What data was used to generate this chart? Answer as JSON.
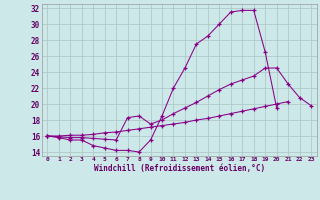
{
  "xlabel": "Windchill (Refroidissement éolien,°C)",
  "background_color": "#cce8e8",
  "grid_color": "#b0c8c8",
  "line_color": "#880088",
  "xlim": [
    -0.5,
    23.5
  ],
  "ylim": [
    13.5,
    32.5
  ],
  "xticks": [
    0,
    1,
    2,
    3,
    4,
    5,
    6,
    7,
    8,
    9,
    10,
    11,
    12,
    13,
    14,
    15,
    16,
    17,
    18,
    19,
    20,
    21,
    22,
    23
  ],
  "yticks": [
    14,
    16,
    18,
    20,
    22,
    24,
    26,
    28,
    30,
    32
  ],
  "curve1_y": [
    16.0,
    15.8,
    15.5,
    15.5,
    14.8,
    14.5,
    14.2,
    14.2,
    14.0,
    15.5,
    18.5,
    22.0,
    24.5,
    27.5,
    28.5,
    30.0,
    31.5,
    31.7,
    31.7,
    26.5,
    19.5,
    null,
    null,
    null
  ],
  "curve2_y": [
    16.0,
    15.9,
    15.8,
    15.8,
    15.7,
    15.6,
    15.5,
    18.3,
    18.5,
    17.5,
    18.0,
    18.8,
    19.5,
    20.2,
    21.0,
    21.8,
    22.5,
    23.0,
    23.5,
    24.5,
    24.5,
    22.5,
    20.8,
    19.8
  ],
  "curve3_y": [
    16.0,
    16.0,
    16.1,
    16.1,
    16.2,
    16.4,
    16.5,
    16.7,
    16.9,
    17.1,
    17.3,
    17.5,
    17.7,
    18.0,
    18.2,
    18.5,
    18.8,
    19.1,
    19.4,
    19.7,
    20.0,
    20.3,
    null,
    null
  ]
}
